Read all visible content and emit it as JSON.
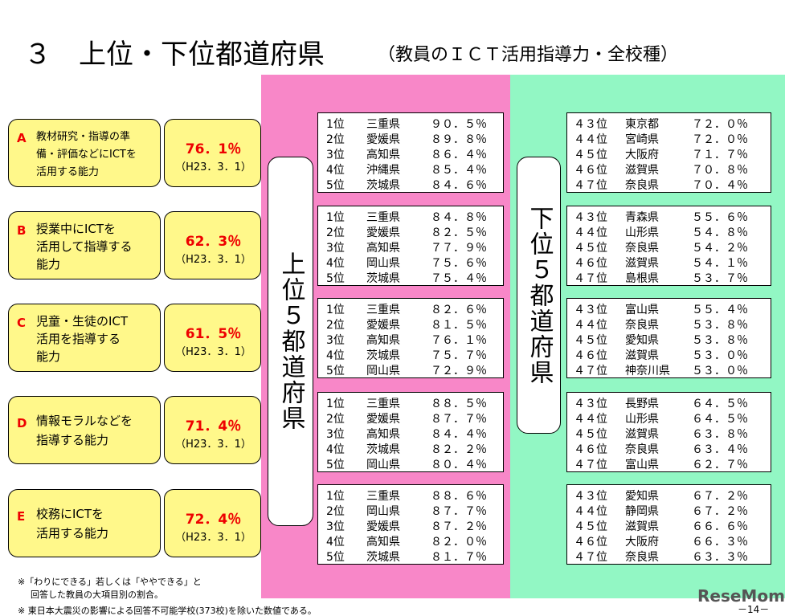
{
  "header": {
    "title": "３　上位・下位都道府県",
    "subtitle": "（教員のＩＣＴ活用指導力・全校種）"
  },
  "items": [
    {
      "letter": "A",
      "label": [
        "教材研究・指導の準",
        "備・評価などにICTを",
        "活用する能力"
      ],
      "percent": "76．1％",
      "date": "（H23．3．1）"
    },
    {
      "letter": "B",
      "label": [
        "授業中にICTを",
        "活用して指導する",
        "能力"
      ],
      "percent": "62．3％",
      "date": "（H23．3．1）"
    },
    {
      "letter": "C",
      "label": [
        "児童・生徒のICT",
        "活用を指導する",
        "能力"
      ],
      "percent": "61．5％",
      "date": "（H23．3．1）"
    },
    {
      "letter": "D",
      "label": [
        "情報モラルなどを",
        "指導する能力"
      ],
      "percent": "71．4％",
      "date": "（H23．3．1）"
    },
    {
      "letter": "E",
      "label": [
        "校務にICTを",
        "活用する能力"
      ],
      "percent": "72．4％",
      "date": "（H23．3．1）"
    }
  ],
  "top_label": "上位５都道府県",
  "bottom_label": "下位５都道府県",
  "top5": [
    {
      "rows": [
        [
          "1位",
          "三重県",
          "９０．５％"
        ],
        [
          "2位",
          "愛媛県",
          "８９．８％"
        ],
        [
          "3位",
          "高知県",
          "８６．４％"
        ],
        [
          "4位",
          "沖縄県",
          "８５．４％"
        ],
        [
          "5位",
          "茨城県",
          "８４．６％"
        ]
      ]
    },
    {
      "rows": [
        [
          "1位",
          "三重県",
          "８４．８％"
        ],
        [
          "2位",
          "愛媛県",
          "８２．５％"
        ],
        [
          "3位",
          "高知県",
          "７７．９％"
        ],
        [
          "4位",
          "岡山県",
          "７５．６％"
        ],
        [
          "5位",
          "茨城県",
          "７５．４％"
        ]
      ]
    },
    {
      "rows": [
        [
          "1位",
          "三重県",
          "８２．６％"
        ],
        [
          "2位",
          "愛媛県",
          "８１．５％"
        ],
        [
          "3位",
          "高知県",
          "７６．１％"
        ],
        [
          "4位",
          "茨城県",
          "７５．７％"
        ],
        [
          "5位",
          "岡山県",
          "７２．９％"
        ]
      ]
    },
    {
      "rows": [
        [
          "1位",
          "三重県",
          "８８．５％"
        ],
        [
          "2位",
          "愛媛県",
          "８７．７％"
        ],
        [
          "3位",
          "高知県",
          "８４．４％"
        ],
        [
          "4位",
          "茨城県",
          "８２．２％"
        ],
        [
          "5位",
          "岡山県",
          "８０．４％"
        ]
      ]
    },
    {
      "rows": [
        [
          "1位",
          "三重県",
          "８８．６％"
        ],
        [
          "2位",
          "岡山県",
          "８７．７％"
        ],
        [
          "3位",
          "愛媛県",
          "８７．２％"
        ],
        [
          "4位",
          "高知県",
          "８２．０％"
        ],
        [
          "5位",
          "茨城県",
          "８１．７％"
        ]
      ]
    }
  ],
  "bottom5": [
    {
      "rows": [
        [
          "４３位",
          "東京都",
          "７２．０％"
        ],
        [
          "４４位",
          "宮崎県",
          "７２．０％"
        ],
        [
          "４５位",
          "大阪府",
          "７１．７％"
        ],
        [
          "４６位",
          "滋賀県",
          "７０．８％"
        ],
        [
          "４７位",
          "奈良県",
          "７０．４％"
        ]
      ]
    },
    {
      "rows": [
        [
          "４３位",
          "青森県",
          "５５．６％"
        ],
        [
          "４４位",
          "山形県",
          "５４．８％"
        ],
        [
          "４５位",
          "奈良県",
          "５４．２％"
        ],
        [
          "４６位",
          "滋賀県",
          "５４．１％"
        ],
        [
          "４７位",
          "島根県",
          "５３．７％"
        ]
      ]
    },
    {
      "rows": [
        [
          "４３位",
          "富山県",
          "５５．４％"
        ],
        [
          "４４位",
          "奈良県",
          "５３．８％"
        ],
        [
          "４５位",
          "愛知県",
          "５３．８％"
        ],
        [
          "４６位",
          "滋賀県",
          "５３．０％"
        ],
        [
          "４７位",
          "神奈川県",
          "５３．０％"
        ]
      ]
    },
    {
      "rows": [
        [
          "４３位",
          "長野県",
          "６４．５％"
        ],
        [
          "４４位",
          "山形県",
          "６４．５％"
        ],
        [
          "４５位",
          "滋賀県",
          "６３．８％"
        ],
        [
          "４６位",
          "奈良県",
          "６３．４％"
        ],
        [
          "４７位",
          "富山県",
          "６２．７％"
        ]
      ]
    },
    {
      "rows": [
        [
          "４３位",
          "愛知県",
          "６７．２％"
        ],
        [
          "４４位",
          "静岡県",
          "６７．２％"
        ],
        [
          "４５位",
          "滋賀県",
          "６６．６％"
        ],
        [
          "４６位",
          "大阪府",
          "６６．３％"
        ],
        [
          "４７位",
          "奈良県",
          "６３．３％"
        ]
      ]
    }
  ],
  "footnotes": [
    "※「わりにできる」若しくは「ややできる」と",
    "回答した教員の大項目別の割合。",
    "※ 東日本大震災の影響による回答不可能学校(373校)を除いた数値である。"
  ],
  "watermark": "ReseMom",
  "page_number": "－14－"
}
